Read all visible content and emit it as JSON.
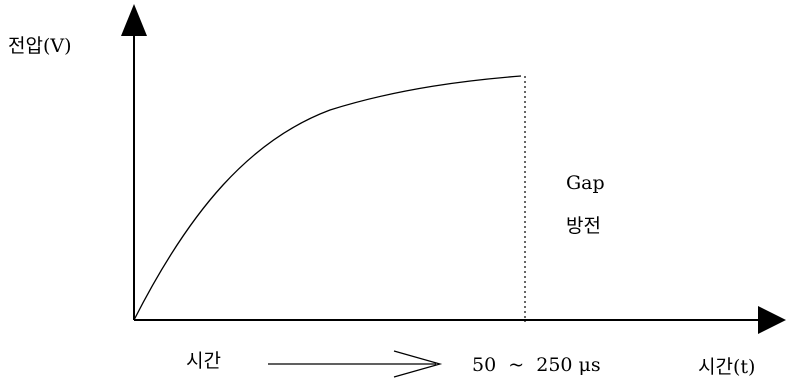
{
  "diagram": {
    "y_axis_label": "전압(V)",
    "x_axis_label": "시간(t)",
    "time_label": "시간",
    "duration_label": "50  ~  250 μs",
    "event_label_line1": "Gap",
    "event_label_line2": "방전",
    "curve": "charging curve rising then saturating",
    "colors": {
      "stroke": "#000000",
      "background": "#ffffff"
    }
  }
}
